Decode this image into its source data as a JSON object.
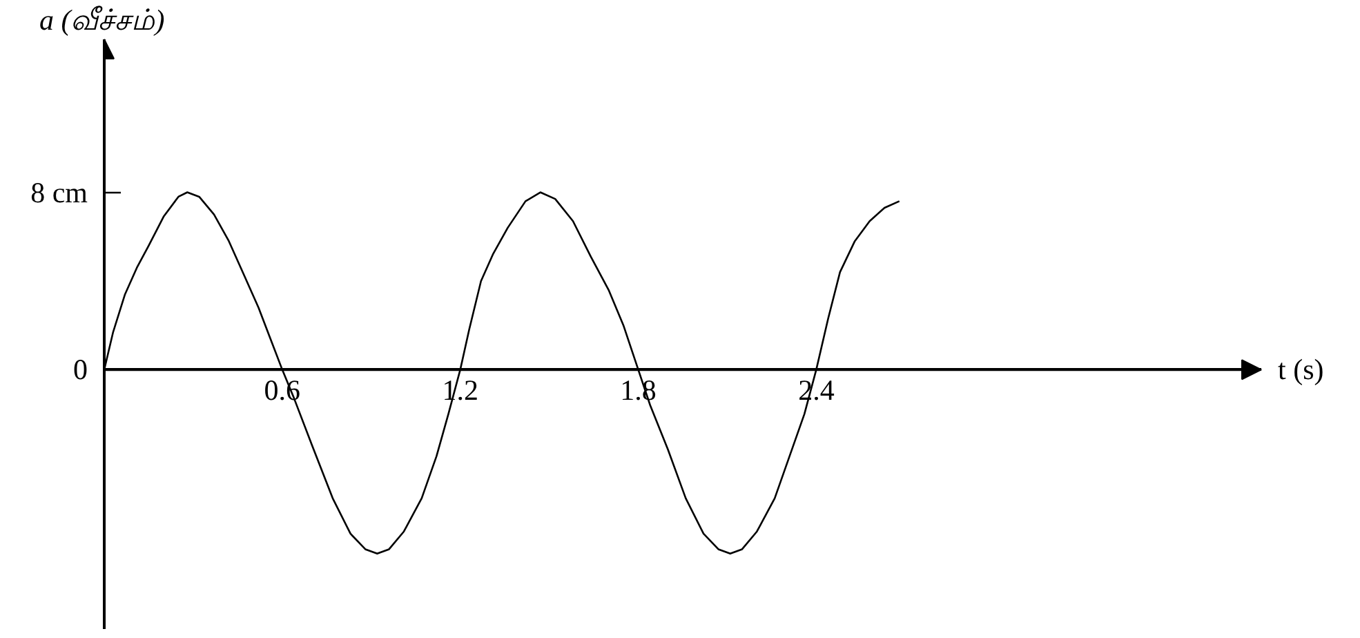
{
  "chart_data": {
    "type": "line",
    "xlabel": "t (s)",
    "ylabel": "a (வீச்சம்)",
    "x": [
      0,
      0.03,
      0.07,
      0.11,
      0.15,
      0.2,
      0.25,
      0.28,
      0.32,
      0.37,
      0.42,
      0.47,
      0.52,
      0.56,
      0.6,
      0.64,
      0.7,
      0.77,
      0.83,
      0.88,
      0.92,
      0.96,
      1.01,
      1.07,
      1.12,
      1.16,
      1.2,
      1.23,
      1.27,
      1.31,
      1.36,
      1.42,
      1.47,
      1.52,
      1.58,
      1.64,
      1.7,
      1.75,
      1.8,
      1.84,
      1.9,
      1.96,
      2.02,
      2.07,
      2.11,
      2.15,
      2.2,
      2.26,
      2.31,
      2.36,
      2.4,
      2.44,
      2.48,
      2.53,
      2.58,
      2.63,
      2.68
    ],
    "series": [
      {
        "color": "#000000",
        "values": [
          0,
          1.7,
          3.4,
          4.6,
          5.6,
          6.9,
          7.8,
          8.0,
          7.8,
          7.0,
          5.8,
          4.3,
          2.8,
          1.4,
          0,
          -1.3,
          -3.4,
          -5.8,
          -7.4,
          -8.1,
          -8.3,
          -8.1,
          -7.3,
          -5.8,
          -3.9,
          -2.0,
          0,
          1.8,
          4.0,
          5.2,
          6.4,
          7.6,
          8.0,
          7.7,
          6.7,
          5.1,
          3.6,
          2.0,
          0,
          -1.6,
          -3.6,
          -5.8,
          -7.4,
          -8.1,
          -8.3,
          -8.1,
          -7.3,
          -5.8,
          -3.9,
          -2.0,
          0,
          2.3,
          4.4,
          5.8,
          6.7,
          7.3,
          7.6
        ]
      }
    ],
    "xlim": [
      0,
      3.9
    ],
    "ylim": [
      -11.7,
      14.9
    ],
    "xticks": [
      0.6,
      1.2,
      1.8,
      2.4
    ],
    "yticks": [
      0,
      {
        "value": 8,
        "label": "8 cm"
      }
    ],
    "line_style": "solid"
  }
}
